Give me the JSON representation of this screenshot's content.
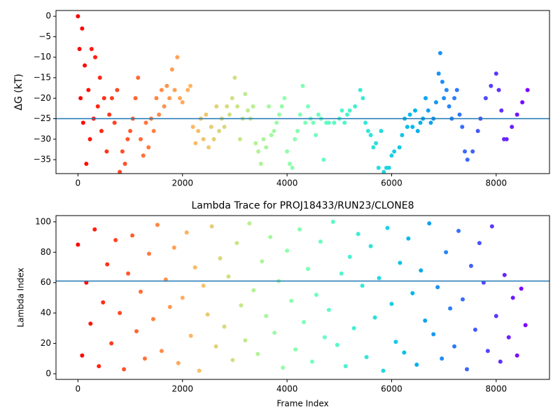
{
  "chart_data": [
    {
      "type": "scatter",
      "ylabel": "ΔG (kT)",
      "colormap": "rainbow_r",
      "hline": -25,
      "hline_color": "#1f77b4",
      "xlim": [
        -420,
        9020
      ],
      "ylim": [
        -38.4,
        1.4
      ],
      "xticks": [
        0,
        2000,
        4000,
        6000,
        8000
      ],
      "yticks": [
        0,
        {
          "value": -5,
          "label": "−5"
        },
        {
          "value": -10,
          "label": "−10"
        },
        {
          "value": -15,
          "label": "−15"
        },
        {
          "value": -20,
          "label": "−20"
        },
        {
          "value": -25,
          "label": "−25"
        },
        {
          "value": -30,
          "label": "−30"
        },
        {
          "value": -35,
          "label": "−35"
        }
      ],
      "x": [
        0,
        30,
        50,
        80,
        100,
        130,
        160,
        200,
        230,
        260,
        300,
        330,
        380,
        420,
        450,
        500,
        550,
        600,
        650,
        700,
        750,
        800,
        850,
        900,
        950,
        1000,
        1050,
        1100,
        1150,
        1200,
        1250,
        1300,
        1350,
        1400,
        1450,
        1500,
        1550,
        1600,
        1650,
        1700,
        1750,
        1800,
        1850,
        1900,
        1950,
        2000,
        2100,
        2150,
        2200,
        2250,
        2300,
        2350,
        2400,
        2450,
        2500,
        2550,
        2600,
        2650,
        2700,
        2750,
        2800,
        2850,
        2900,
        2950,
        3000,
        3050,
        3100,
        3150,
        3200,
        3250,
        3300,
        3350,
        3400,
        3450,
        3500,
        3550,
        3600,
        3650,
        3700,
        3750,
        3800,
        3850,
        3900,
        3950,
        4000,
        4050,
        4100,
        4150,
        4200,
        4250,
        4300,
        4350,
        4400,
        4450,
        4500,
        4550,
        4600,
        4650,
        4700,
        4750,
        4800,
        4900,
        5000,
        5050,
        5100,
        5150,
        5200,
        5300,
        5400,
        5450,
        5500,
        5550,
        5600,
        5650,
        5700,
        5750,
        5800,
        5850,
        5900,
        5950,
        6000,
        6050,
        6150,
        6200,
        6250,
        6300,
        6350,
        6400,
        6450,
        6500,
        6550,
        6600,
        6650,
        6700,
        6750,
        6800,
        6850,
        6900,
        6930,
        6970,
        7000,
        7050,
        7100,
        7150,
        7200,
        7250,
        7300,
        7350,
        7400,
        7450,
        7550,
        7650,
        7700,
        7800,
        7900,
        8000,
        8050,
        8100,
        8150,
        8200,
        8300,
        8400,
        8500,
        8600
      ],
      "values": [
        0,
        -8,
        -20,
        -3,
        -26,
        -12,
        -36,
        -18,
        -30,
        -8,
        -25,
        -10,
        -22,
        -15,
        -28,
        -20,
        -33,
        -24,
        -20,
        -26,
        -18,
        -38,
        -33,
        -36,
        -30,
        -28,
        -25,
        -20,
        -15,
        -30,
        -34,
        -26,
        -32,
        -25,
        -28,
        -20,
        -24,
        -18,
        -22,
        -17,
        -20,
        -13,
        -18,
        -10,
        -20,
        -21,
        -18,
        -17,
        -27,
        -31,
        -28,
        -25,
        -30,
        -24,
        -32,
        -27,
        -30,
        -22,
        -28,
        -25,
        -27,
        -22,
        -24,
        -20,
        -15,
        -22,
        -30,
        -25,
        -19,
        -23,
        -25,
        -22,
        -31,
        -33,
        -36,
        -30,
        -32,
        -22,
        -29,
        -28,
        -26,
        -24,
        -22,
        -20,
        -33,
        -36,
        -37,
        -30,
        -28,
        -24,
        -17,
        -26,
        -22,
        -25,
        -26,
        -29,
        -24,
        -25,
        -35,
        -26,
        -26,
        -26,
        -25,
        -23,
        -26,
        -24,
        -23,
        -22,
        -18,
        -20,
        -26,
        -28,
        -29,
        -32,
        -31,
        -37,
        -28,
        -38,
        -37,
        -37,
        -34,
        -33,
        -32,
        -29,
        -25,
        -27,
        -24,
        -27,
        -23,
        -28,
        -26,
        -25,
        -20,
        -23,
        -26,
        -25,
        -21,
        -14,
        -9,
        -16,
        -20,
        -18,
        -22,
        -25,
        -20,
        -18,
        -24,
        -27,
        -33,
        -35,
        -33,
        -28,
        -25,
        -20,
        -17,
        -14,
        -18,
        -23,
        -30,
        -30,
        -27,
        -24,
        -21,
        -18
      ]
    },
    {
      "type": "scatter",
      "title": "Lambda Trace for PROJ18433/RUN23/CLONE8",
      "xlabel": "Frame Index",
      "ylabel": "Lambda Index",
      "colormap": "rainbow_r",
      "hline": 61,
      "hline_color": "#1f77b4",
      "xlim": [
        -420,
        9020
      ],
      "ylim": [
        -3.7,
        104.1
      ],
      "xticks": [
        0,
        2000,
        4000,
        6000,
        8000
      ],
      "yticks": [
        0,
        20,
        40,
        60,
        80,
        100
      ],
      "x": [
        0,
        80,
        160,
        240,
        320,
        400,
        480,
        560,
        640,
        720,
        800,
        880,
        960,
        1040,
        1120,
        1200,
        1280,
        1360,
        1440,
        1520,
        1600,
        1680,
        1760,
        1840,
        1920,
        2000,
        2080,
        2160,
        2240,
        2320,
        2400,
        2480,
        2560,
        2640,
        2720,
        2800,
        2880,
        2960,
        3040,
        3120,
        3200,
        3280,
        3360,
        3440,
        3520,
        3600,
        3680,
        3760,
        3840,
        3920,
        4000,
        4080,
        4160,
        4240,
        4320,
        4400,
        4480,
        4560,
        4640,
        4720,
        4800,
        4880,
        4960,
        5040,
        5120,
        5200,
        5280,
        5360,
        5440,
        5520,
        5600,
        5680,
        5760,
        5840,
        5920,
        6000,
        6080,
        6160,
        6240,
        6320,
        6400,
        6480,
        6560,
        6640,
        6720,
        6800,
        6880,
        6960,
        7040,
        7120,
        7200,
        7280,
        7360,
        7440,
        7520,
        7600,
        7680,
        7760,
        7840,
        7920,
        8000,
        8080,
        8160,
        8240,
        8320,
        8400,
        8480,
        8560
      ],
      "values": [
        85,
        12,
        60,
        33,
        95,
        5,
        47,
        72,
        20,
        88,
        40,
        3,
        66,
        91,
        28,
        54,
        10,
        79,
        36,
        98,
        15,
        62,
        44,
        83,
        7,
        50,
        93,
        25,
        70,
        2,
        58,
        39,
        97,
        18,
        76,
        31,
        64,
        9,
        86,
        45,
        22,
        99,
        55,
        13,
        74,
        38,
        90,
        27,
        61,
        4,
        81,
        48,
        16,
        95,
        34,
        69,
        8,
        52,
        87,
        24,
        42,
        100,
        19,
        66,
        5,
        77,
        30,
        92,
        58,
        11,
        84,
        37,
        63,
        2,
        96,
        46,
        21,
        73,
        14,
        89,
        53,
        6,
        68,
        35,
        99,
        26,
        57,
        10,
        80,
        43,
        18,
        94,
        49,
        3,
        71,
        29,
        86,
        60,
        15,
        97,
        38,
        8,
        65,
        24,
        50,
        12,
        56,
        32
      ]
    }
  ]
}
